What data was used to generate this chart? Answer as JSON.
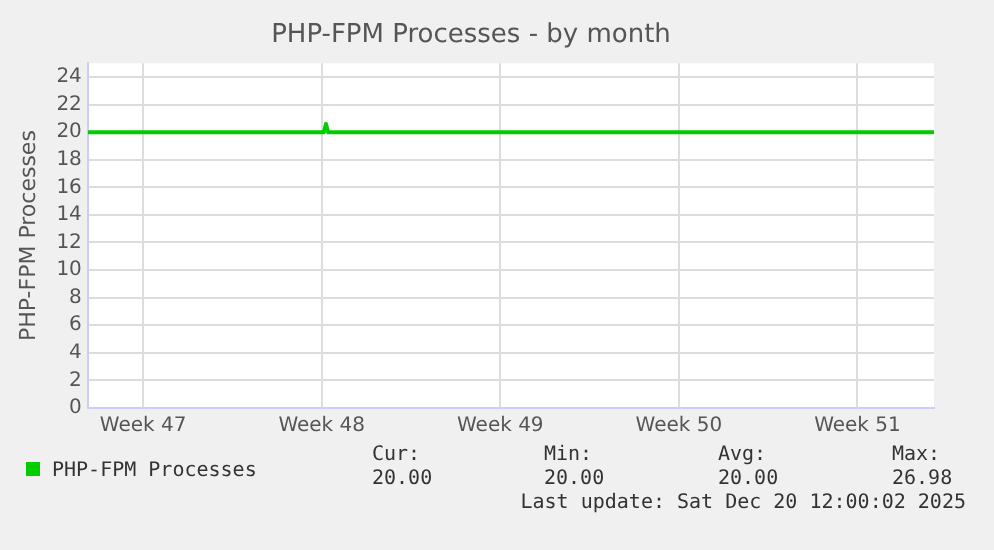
{
  "chart_data": {
    "type": "line",
    "title": "PHP-FPM Processes - by month",
    "ylabel": "PHP-FPM Processes",
    "x": [
      "2025-11-18T08:00",
      "2025-11-27T14:00",
      "2025-11-27T16:00",
      "2025-11-27T18:00",
      "2025-12-21T12:00"
    ],
    "series": [
      {
        "name": "PHP-FPM Processes",
        "color": "#00cc00",
        "values": [
          20,
          20,
          20.6,
          20,
          20
        ]
      }
    ],
    "xlim": [
      "2025-11-18T08:00",
      "2025-12-21T12:00"
    ],
    "xticks": [
      {
        "value": "2025-11-20T12:00",
        "label": "Week 47"
      },
      {
        "value": "2025-11-27T12:00",
        "label": "Week 48"
      },
      {
        "value": "2025-12-04T12:00",
        "label": "Week 49"
      },
      {
        "value": "2025-12-11T12:00",
        "label": "Week 50"
      },
      {
        "value": "2025-12-18T12:00",
        "label": "Week 51"
      }
    ],
    "ylim": [
      0,
      25
    ],
    "yticks": [
      0,
      2,
      4,
      6,
      8,
      10,
      12,
      14,
      16,
      18,
      20,
      22,
      24
    ],
    "grid": true,
    "legend": "bottom",
    "marker": "none",
    "line_style": "solid",
    "annotations": [
      "Cur:",
      "Min:",
      "Avg:",
      "Max:",
      "20.00",
      "20.00",
      "20.00",
      "26.98",
      "Last update: Sat Dec 20 12:00:02 2025"
    ]
  }
}
